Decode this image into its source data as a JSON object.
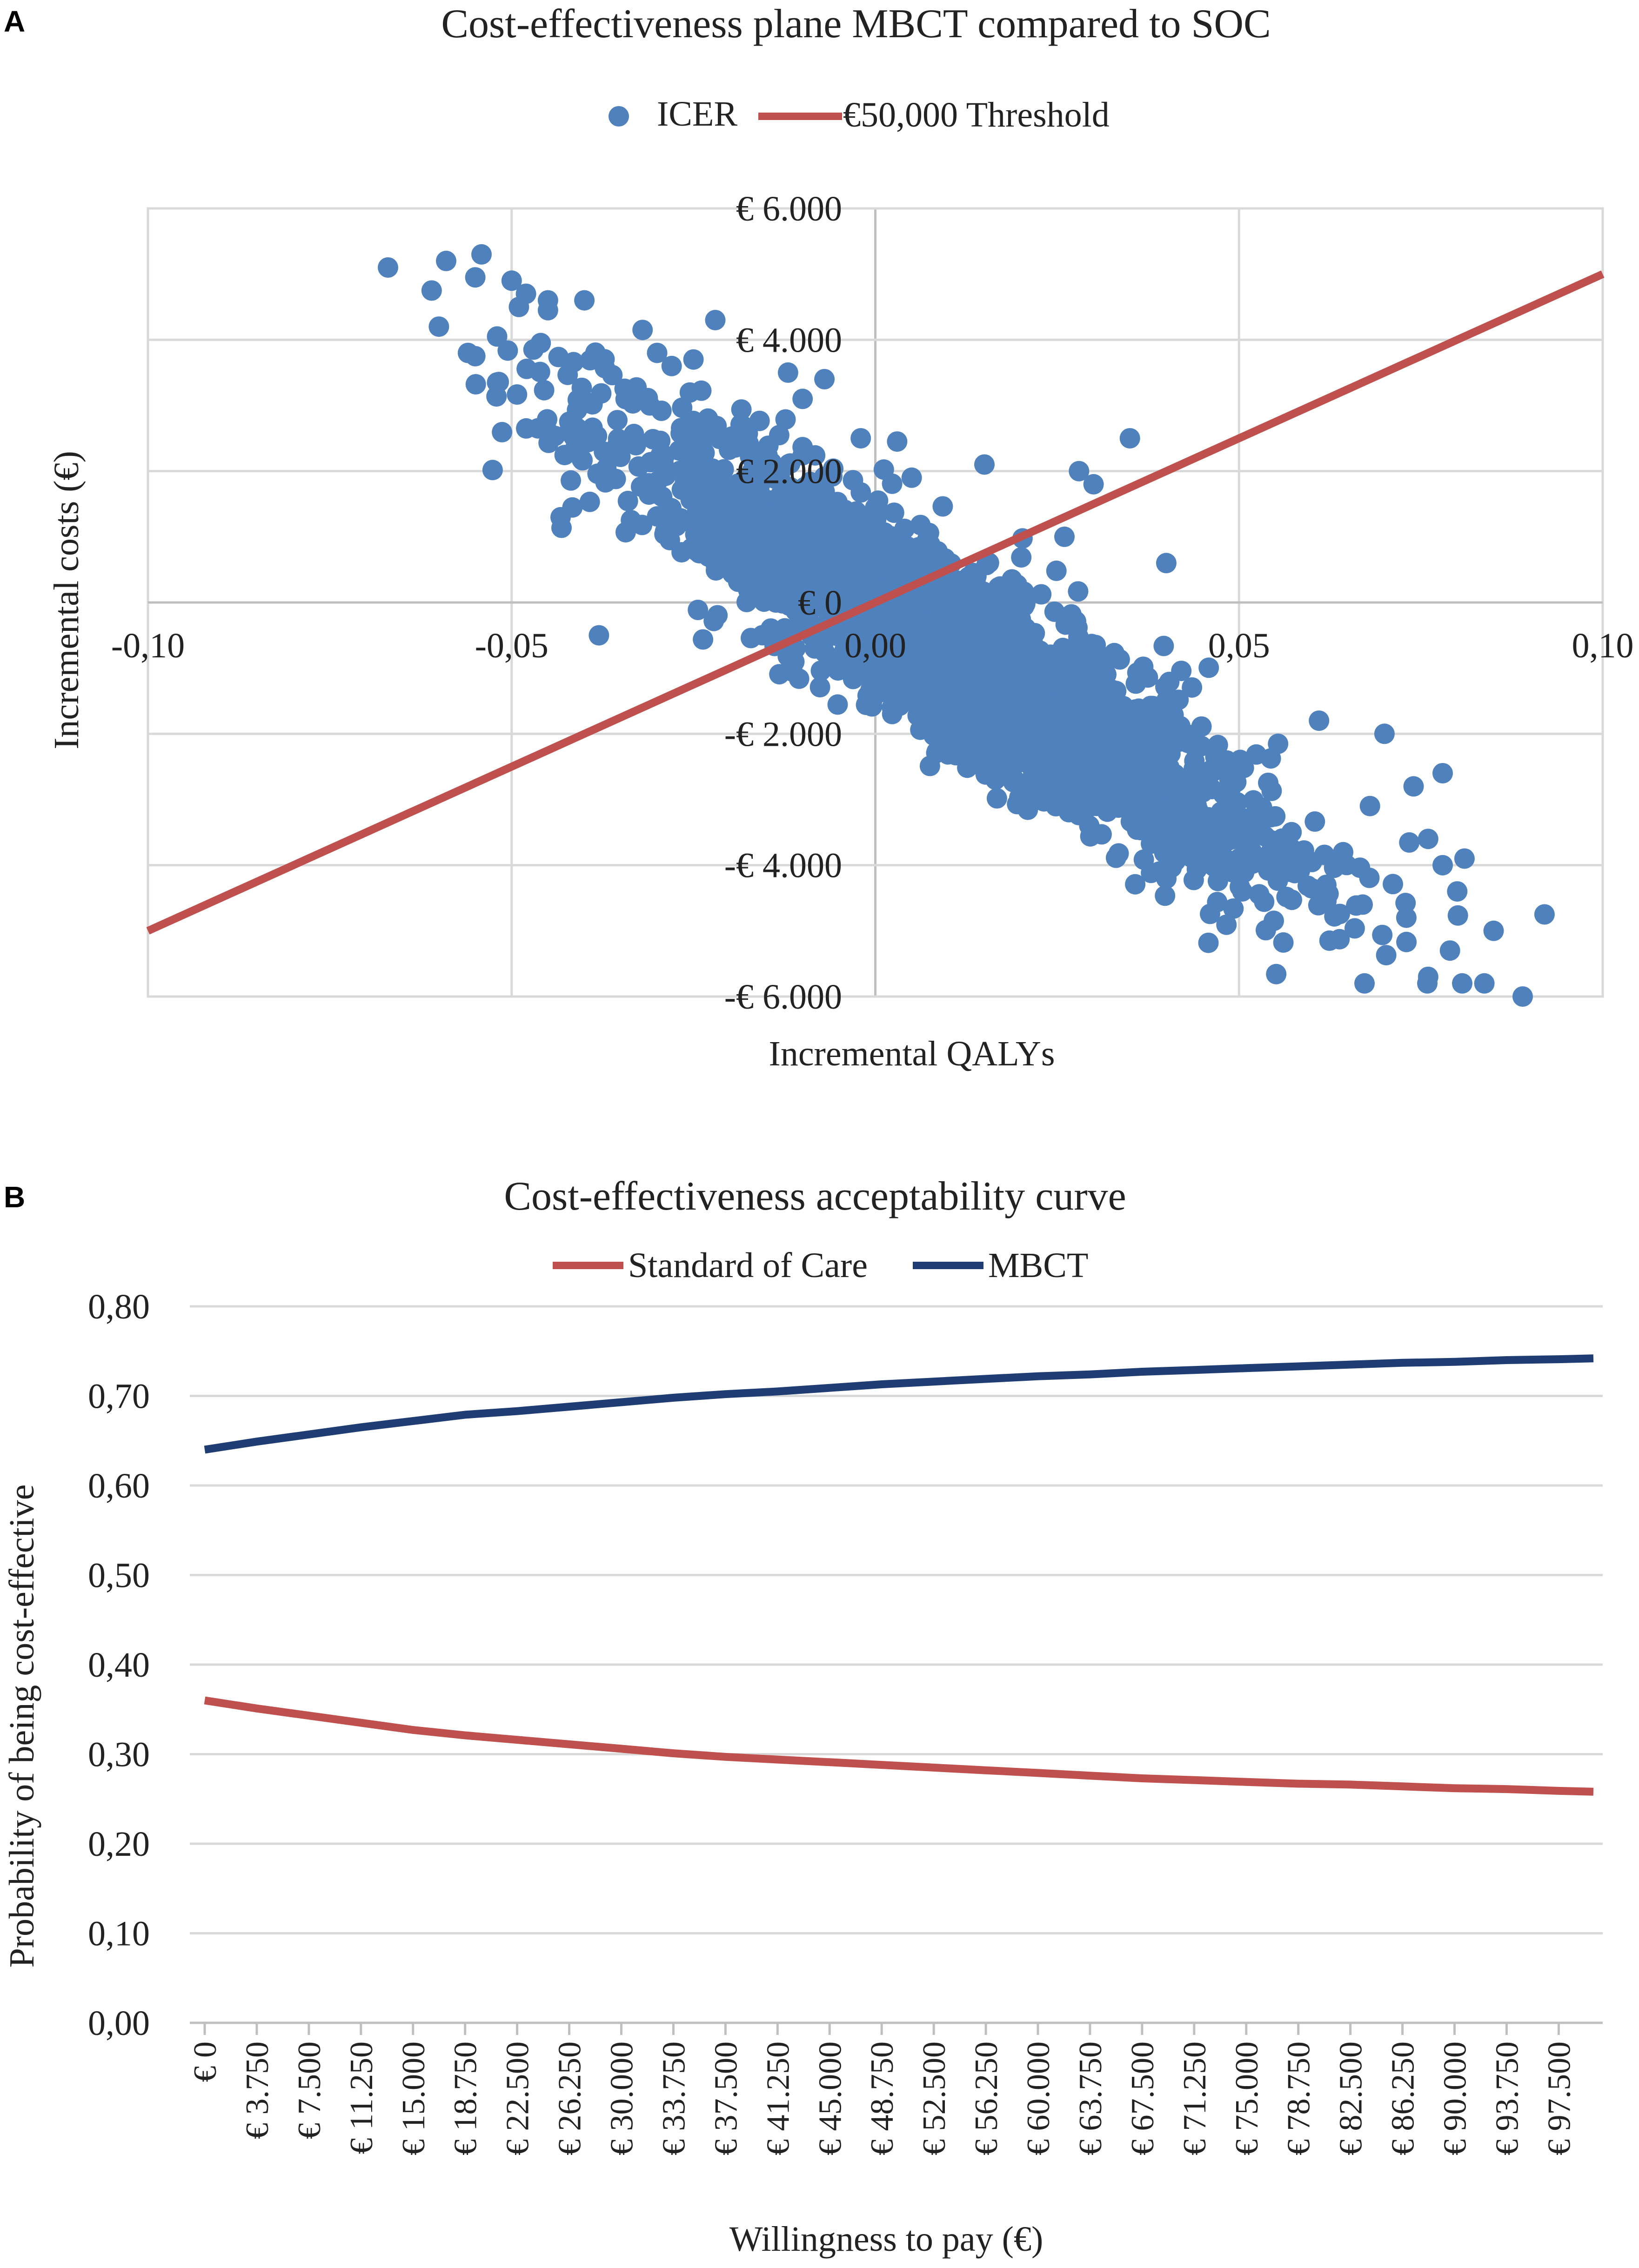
{
  "chart_data": [
    {
      "panel_label": "A",
      "type": "scatter",
      "title": "Cost-effectiveness plane MBCT compared to SOC",
      "xlabel": "Incremental QALYs",
      "ylabel": "Incremental costs (€)",
      "xlim": [
        -0.1,
        0.1
      ],
      "ylim": [
        -6000,
        6000
      ],
      "x_ticks": [
        -0.1,
        -0.05,
        0.0,
        0.05,
        0.1
      ],
      "x_tick_labels": [
        "-0,10",
        "-0,05",
        "0,00",
        "0,05",
        "0,10"
      ],
      "y_ticks": [
        6000,
        4000,
        2000,
        0,
        -2000,
        -4000,
        -6000
      ],
      "y_tick_labels": [
        "€ 6.000",
        "€ 4.000",
        "€ 2.000",
        "€ 0",
        "-€ 2.000",
        "-€ 4.000",
        "-€ 6.000"
      ],
      "grid": true,
      "legend_position": "top-center",
      "colors": {
        "icer": "#4f81bd",
        "threshold": "#c0504d"
      },
      "series": [
        {
          "name": "ICER",
          "kind": "scatter",
          "trend_slope": -68000,
          "points": [
            [
              -0.067,
              5100
            ],
            [
              -0.061,
              4750
            ],
            [
              -0.059,
              5200
            ],
            [
              -0.06,
              4200
            ],
            [
              -0.055,
              4950
            ],
            [
              -0.056,
              3800
            ],
            [
              -0.055,
              3750
            ],
            [
              -0.05,
              4900
            ],
            [
              -0.052,
              4050
            ],
            [
              -0.052,
              3350
            ],
            [
              -0.049,
              4500
            ],
            [
              -0.045,
              4600
            ],
            [
              -0.047,
              3850
            ],
            [
              -0.046,
              3950
            ],
            [
              -0.048,
              2650
            ],
            [
              -0.045,
              4450
            ],
            [
              -0.04,
              4600
            ],
            [
              -0.032,
              4150
            ],
            [
              -0.022,
              4300
            ],
            [
              -0.012,
              3500
            ],
            [
              -0.01,
              3100
            ],
            [
              -0.007,
              3400
            ],
            [
              -0.002,
              2500
            ],
            [
              0.003,
              2450
            ],
            [
              0.005,
              1900
            ],
            [
              0.015,
              2100
            ],
            [
              0.028,
              2000
            ],
            [
              0.03,
              1800
            ],
            [
              0.026,
              1000
            ],
            [
              0.04,
              600
            ],
            [
              0.012,
              -1500
            ],
            [
              0.019,
              -2400
            ],
            [
              0.028,
              -2800
            ],
            [
              0.04,
              -3450
            ],
            [
              0.044,
              -3100
            ],
            [
              0.05,
              -3900
            ],
            [
              0.054,
              -3850
            ],
            [
              0.061,
              -1800
            ],
            [
              0.068,
              -3100
            ],
            [
              0.07,
              -2000
            ],
            [
              0.074,
              -2800
            ],
            [
              0.078,
              -2600
            ],
            [
              0.076,
              -3600
            ],
            [
              0.078,
              -4000
            ],
            [
              0.08,
              -4400
            ],
            [
              0.081,
              -3900
            ],
            [
              0.067,
              -4600
            ],
            [
              0.073,
              -4800
            ],
            [
              0.076,
              -5700
            ],
            [
              0.079,
              -5300
            ],
            [
              0.085,
              -5000
            ],
            [
              0.089,
              -6000
            ],
            [
              0.092,
              -4750
            ],
            [
              0.062,
              -4300
            ],
            [
              0.057,
              -4100
            ],
            [
              0.035,
              2500
            ],
            [
              -0.038,
              -500
            ],
            [
              -0.03,
              3800
            ],
            [
              -0.025,
              3700
            ],
            [
              -0.028,
              3600
            ]
          ]
        },
        {
          "name": "€50,000 Threshold",
          "kind": "line",
          "wtp_per_qaly": 50000,
          "x": [
            -0.1,
            0.1
          ],
          "y": [
            -5000,
            5000
          ]
        }
      ]
    },
    {
      "panel_label": "B",
      "type": "line",
      "title": "Cost-effectiveness acceptability curve",
      "xlabel": "Willingness to pay (€)",
      "ylabel": "Probability of being cost-effective",
      "ylim": [
        0,
        0.8
      ],
      "y_ticks": [
        0.8,
        0.7,
        0.6,
        0.5,
        0.4,
        0.3,
        0.2,
        0.1,
        0.0
      ],
      "y_tick_labels": [
        "0,80",
        "0,70",
        "0,60",
        "0,50",
        "0,40",
        "0,30",
        "0,20",
        "0,10",
        "0,00"
      ],
      "x_tick_labels": [
        "€ 0",
        "€ 3.750",
        "€ 7.500",
        "€ 11.250",
        "€ 15.000",
        "€ 18.750",
        "€ 22.500",
        "€ 26.250",
        "€ 30.000",
        "€ 33.750",
        "€ 37.500",
        "€ 41.250",
        "€ 45.000",
        "€ 48.750",
        "€ 52.500",
        "€ 56.250",
        "€ 60.000",
        "€ 63.750",
        "€ 67.500",
        "€ 71.250",
        "€ 75.000",
        "€ 78.750",
        "€ 82.500",
        "€ 86.250",
        "€ 90.000",
        "€ 93.750",
        "€ 97.500"
      ],
      "x_values": [
        0,
        3750,
        7500,
        11250,
        15000,
        18750,
        22500,
        26250,
        30000,
        33750,
        37500,
        41250,
        45000,
        48750,
        52500,
        56250,
        60000,
        63750,
        67500,
        71250,
        75000,
        78750,
        82500,
        86250,
        90000,
        93750,
        97500,
        100000
      ],
      "grid": true,
      "legend_position": "top-center",
      "series": [
        {
          "name": "Standard of Care",
          "color": "#c0504d",
          "values": [
            0.36,
            0.351,
            0.343,
            0.335,
            0.327,
            0.321,
            0.316,
            0.311,
            0.306,
            0.301,
            0.297,
            0.294,
            0.291,
            0.288,
            0.285,
            0.282,
            0.279,
            0.276,
            0.273,
            0.271,
            0.269,
            0.267,
            0.266,
            0.264,
            0.262,
            0.261,
            0.259,
            0.258
          ]
        },
        {
          "name": "MBCT",
          "color": "#1f3d73",
          "values": [
            0.64,
            0.649,
            0.657,
            0.665,
            0.672,
            0.679,
            0.683,
            0.688,
            0.693,
            0.698,
            0.702,
            0.705,
            0.709,
            0.713,
            0.716,
            0.719,
            0.722,
            0.724,
            0.727,
            0.729,
            0.731,
            0.733,
            0.735,
            0.737,
            0.738,
            0.74,
            0.741,
            0.742
          ]
        }
      ]
    }
  ]
}
